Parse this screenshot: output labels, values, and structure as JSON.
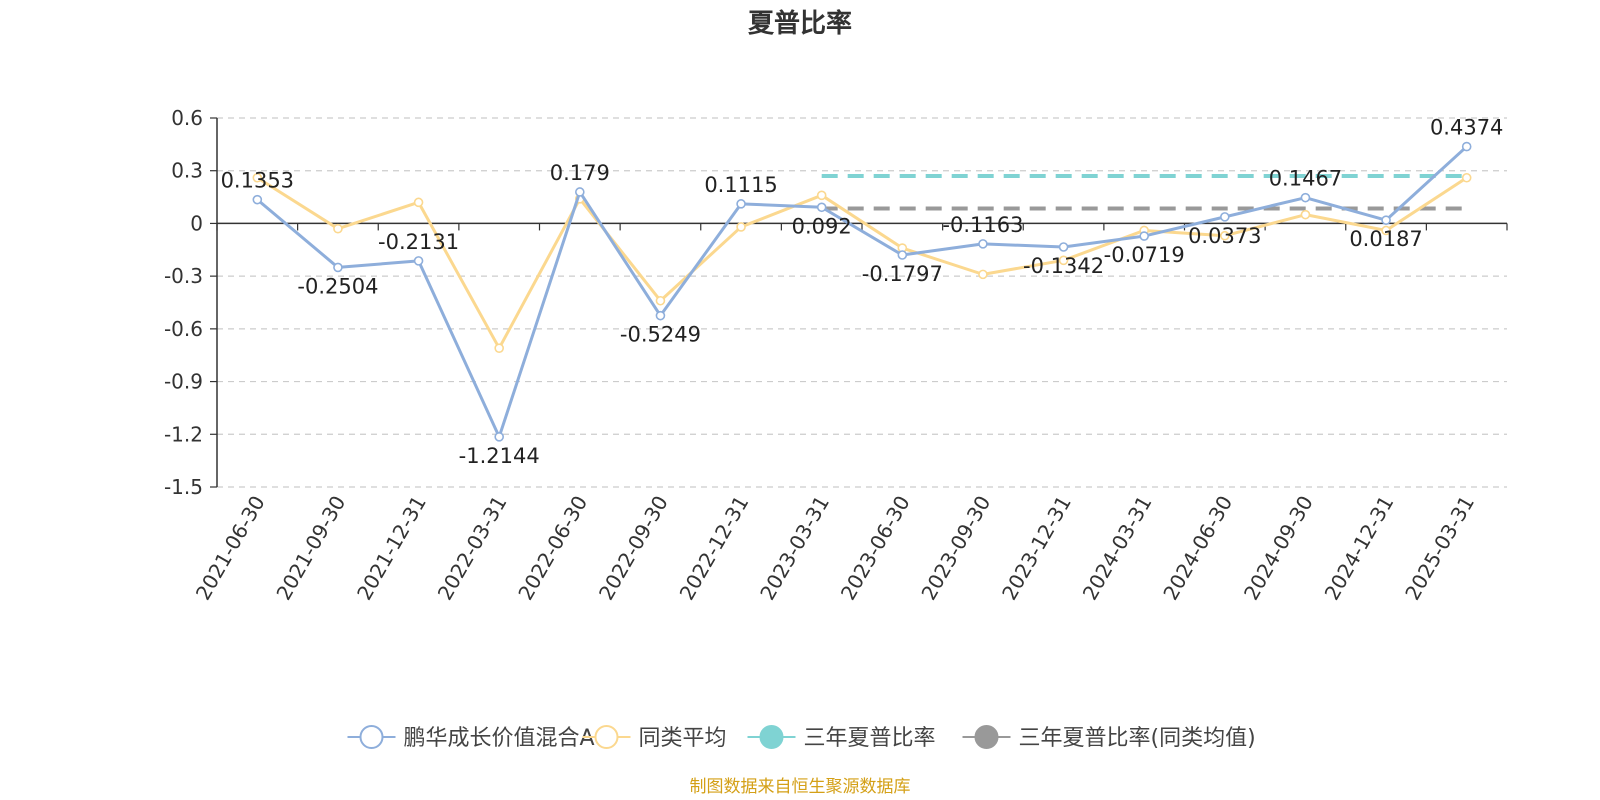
{
  "chart_data": {
    "type": "line",
    "title": "夏普比率",
    "categories": [
      "2021-06-30",
      "2021-09-30",
      "2021-12-31",
      "2022-03-31",
      "2022-06-30",
      "2022-09-30",
      "2022-12-31",
      "2023-03-31",
      "2023-06-30",
      "2023-09-30",
      "2023-12-31",
      "2024-03-31",
      "2024-06-30",
      "2024-09-30",
      "2024-12-31",
      "2025-03-31"
    ],
    "ylim": [
      -1.5,
      0.6
    ],
    "yticks": [
      "0.6",
      "0.3",
      "0",
      "-0.3",
      "-0.6",
      "-0.9",
      "-1.2",
      "-1.5"
    ],
    "grid": true,
    "legend_position": "bottom",
    "series": [
      {
        "name": "鹏华成长价值混合A",
        "color": "#8eaedb",
        "values": [
          0.1353,
          -0.2504,
          -0.2131,
          -1.2144,
          0.179,
          -0.5249,
          0.1115,
          0.092,
          -0.1797,
          -0.1163,
          -0.1342,
          -0.0719,
          0.0373,
          0.1467,
          0.0187,
          0.4374
        ],
        "labels": [
          "0.1353",
          "-0.2504",
          "-0.2131",
          "-1.2144",
          "0.179",
          "-0.5249",
          "0.1115",
          "0.092",
          "-0.1797",
          "-0.1163",
          "-0.1342",
          "-0.0719",
          "0.0373",
          "0.1467",
          "0.0187",
          "0.4374"
        ]
      },
      {
        "name": "同类平均",
        "color": "#fbd88f",
        "values": [
          0.26,
          -0.03,
          0.12,
          -0.71,
          0.14,
          -0.44,
          -0.02,
          0.16,
          -0.14,
          -0.29,
          -0.21,
          -0.04,
          -0.07,
          0.05,
          -0.04,
          0.26
        ]
      }
    ],
    "reference_lines": [
      {
        "name": "三年夏普比率",
        "color": "#7fd3d3",
        "value": 0.27,
        "from_index": 7
      },
      {
        "name": "三年夏普比率(同类均值)",
        "color": "#999999",
        "value": 0.085,
        "from_index": 7
      }
    ],
    "source": "制图数据来自恒生聚源数据库"
  }
}
